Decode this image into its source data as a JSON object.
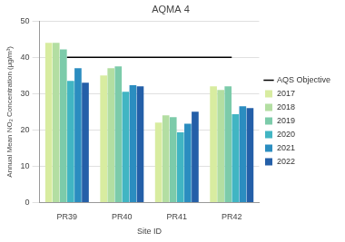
{
  "chart_data": {
    "type": "bar",
    "title": "AQMA 4",
    "x_label": "Site ID",
    "y_label": "Annual Mean NO₂ Concentration (µg/m³)",
    "categories": [
      "PR39",
      "PR40",
      "PR41",
      "PR42"
    ],
    "series": [
      {
        "name": "2017",
        "color": "#d8eca0",
        "values": [
          44,
          35,
          22,
          32
        ]
      },
      {
        "name": "2018",
        "color": "#b3dea2",
        "values": [
          44,
          37,
          24,
          31
        ]
      },
      {
        "name": "2019",
        "color": "#7ccbaa",
        "values": [
          42.2,
          37.5,
          23.5,
          32
        ]
      },
      {
        "name": "2020",
        "color": "#41b5c3",
        "values": [
          33.5,
          30.5,
          19.3,
          24.3
        ]
      },
      {
        "name": "2021",
        "color": "#2b8dc0",
        "values": [
          37,
          32.3,
          21.7,
          26.5
        ]
      },
      {
        "name": "2022",
        "color": "#245fa8",
        "values": [
          33,
          32,
          25,
          26
        ]
      },
      {
        "name": "AQS Objective",
        "color": "#000000",
        "type": "line",
        "line_style": "solid",
        "values": [
          40,
          40,
          40,
          40
        ]
      }
    ],
    "ylim": [
      0,
      50
    ],
    "yticks": [
      0,
      10,
      20,
      30,
      40,
      50
    ],
    "grid": true,
    "legend": "right"
  }
}
